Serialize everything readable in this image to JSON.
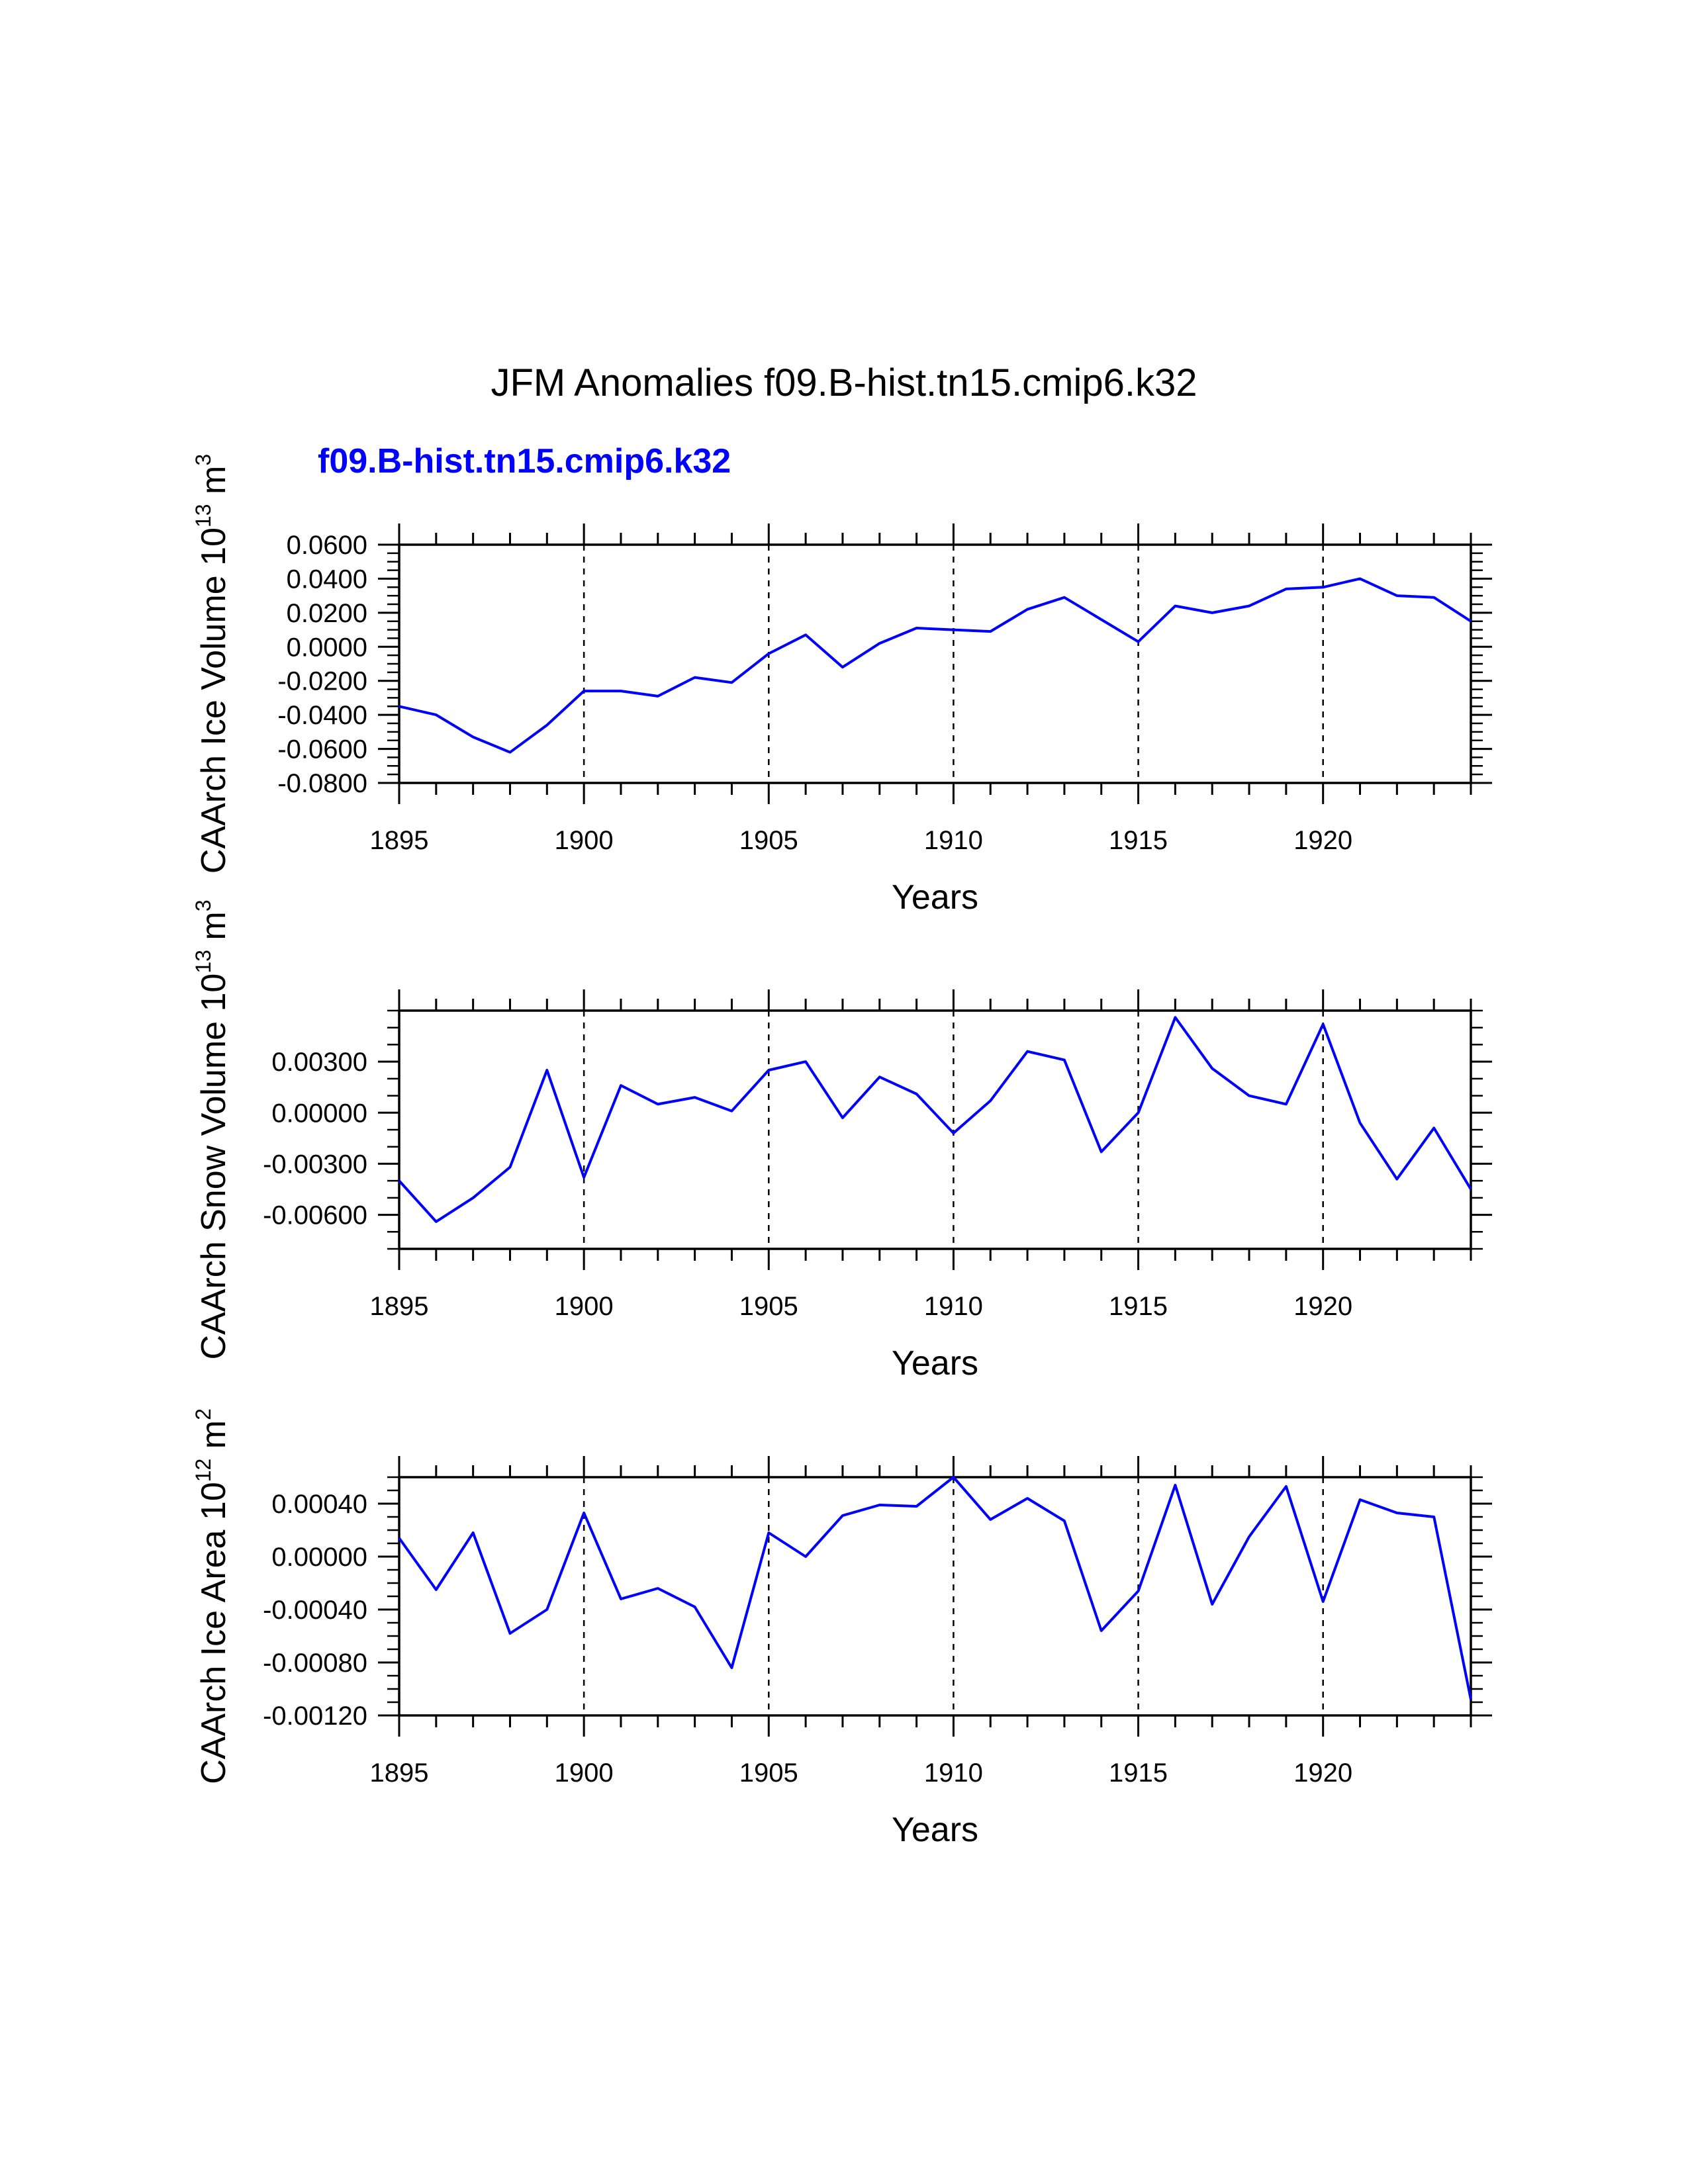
{
  "title": "JFM Anomalies f09.B-hist.tn15.cmip6.k32",
  "subtitle": "f09.B-hist.tn15.cmip6.k32",
  "colors": {
    "series": "#0000ff",
    "text": "#000000",
    "subtitle": "#0000ff"
  },
  "chart_data": [
    {
      "type": "line",
      "ylabel_parts": [
        "CAArch Ice Volume 10",
        "13",
        " m",
        "3"
      ],
      "xlabel": "Years",
      "xlim": [
        1895,
        1924
      ],
      "ylim": [
        -0.08,
        0.06
      ],
      "xticks": [
        "1895",
        "1900",
        "1905",
        "1910",
        "1915",
        "1920"
      ],
      "yticks": [
        "0.0600",
        "0.0400",
        "0.0200",
        "0.0000",
        "-0.0200",
        "-0.0400",
        "-0.0600",
        "-0.0800"
      ],
      "ytick_values": [
        0.06,
        0.04,
        0.02,
        0.0,
        -0.02,
        -0.04,
        -0.06,
        -0.08
      ],
      "minor_y_step": 0.005,
      "x": [
        1895,
        1896,
        1897,
        1898,
        1899,
        1900,
        1901,
        1902,
        1903,
        1904,
        1905,
        1906,
        1907,
        1908,
        1909,
        1910,
        1911,
        1912,
        1913,
        1914,
        1915,
        1916,
        1917,
        1918,
        1919,
        1920,
        1921,
        1922,
        1923,
        1924
      ],
      "series": [
        {
          "name": "f09.B-hist.tn15.cmip6.k32",
          "values": [
            -0.035,
            -0.04,
            -0.053,
            -0.062,
            -0.046,
            -0.026,
            -0.026,
            -0.029,
            -0.018,
            -0.021,
            -0.004,
            0.007,
            -0.012,
            0.002,
            0.011,
            0.01,
            0.009,
            0.022,
            0.029,
            0.016,
            0.003,
            0.024,
            0.02,
            0.024,
            0.034,
            0.035,
            0.04,
            0.03,
            0.029,
            0.015
          ]
        }
      ],
      "grid": "dashed vertical at major x ticks"
    },
    {
      "type": "line",
      "ylabel_parts": [
        "CAArch Snow Volume 10",
        "13",
        " m",
        "3"
      ],
      "xlabel": "Years",
      "xlim": [
        1895,
        1924
      ],
      "ylim": [
        -0.008,
        0.006
      ],
      "xticks": [
        "1895",
        "1900",
        "1905",
        "1910",
        "1915",
        "1920"
      ],
      "yticks": [
        "0.00300",
        "0.00000",
        "-0.00300",
        "-0.00600"
      ],
      "ytick_values": [
        0.003,
        0.0,
        -0.003,
        -0.006
      ],
      "minor_y_step": 0.001,
      "x": [
        1895,
        1896,
        1897,
        1898,
        1899,
        1900,
        1901,
        1902,
        1903,
        1904,
        1905,
        1906,
        1907,
        1908,
        1909,
        1910,
        1911,
        1912,
        1913,
        1914,
        1915,
        1916,
        1917,
        1918,
        1919,
        1920,
        1921,
        1922,
        1923,
        1924
      ],
      "series": [
        {
          "name": "f09.B-hist.tn15.cmip6.k32",
          "values": [
            -0.004,
            -0.0064,
            -0.005,
            -0.0032,
            0.0025,
            -0.0038,
            0.0016,
            0.0005,
            0.0009,
            0.0001,
            0.0025,
            0.003,
            -0.0003,
            0.0021,
            0.0011,
            -0.0012,
            0.0007,
            0.0036,
            0.0031,
            -0.0023,
            0.0,
            0.0056,
            0.0026,
            0.001,
            0.0005,
            0.0052,
            -0.0006,
            -0.0039,
            -0.0009,
            -0.0045
          ]
        }
      ],
      "grid": "dashed vertical at major x ticks"
    },
    {
      "type": "line",
      "ylabel_parts": [
        "CAArch Ice Area 10",
        "12",
        " m",
        "2"
      ],
      "xlabel": "Years",
      "xlim": [
        1895,
        1924
      ],
      "ylim": [
        -0.0012,
        0.0006
      ],
      "xticks": [
        "1895",
        "1900",
        "1905",
        "1910",
        "1915",
        "1920"
      ],
      "yticks": [
        "0.00040",
        "0.00000",
        "-0.00040",
        "-0.00080",
        "-0.00120"
      ],
      "ytick_values": [
        0.0004,
        0.0,
        -0.0004,
        -0.0008,
        -0.0012
      ],
      "minor_y_step": 0.0001,
      "x": [
        1895,
        1896,
        1897,
        1898,
        1899,
        1900,
        1901,
        1902,
        1903,
        1904,
        1905,
        1906,
        1907,
        1908,
        1909,
        1910,
        1911,
        1912,
        1913,
        1914,
        1915,
        1916,
        1917,
        1918,
        1919,
        1920,
        1921,
        1922,
        1923,
        1924
      ],
      "series": [
        {
          "name": "f09.B-hist.tn15.cmip6.k32",
          "values": [
            0.00014,
            -0.00025,
            0.00018,
            -0.00058,
            -0.0004,
            0.00033,
            -0.00032,
            -0.00024,
            -0.00038,
            -0.00084,
            0.00018,
            0.0,
            0.00031,
            0.00039,
            0.00038,
            0.0006,
            0.00028,
            0.00044,
            0.00027,
            -0.00056,
            -0.00026,
            0.00054,
            -0.00036,
            0.00015,
            0.00053,
            -0.00034,
            0.00043,
            0.00033,
            0.0003,
            -0.00108
          ]
        }
      ],
      "grid": "dashed vertical at major x ticks"
    }
  ]
}
